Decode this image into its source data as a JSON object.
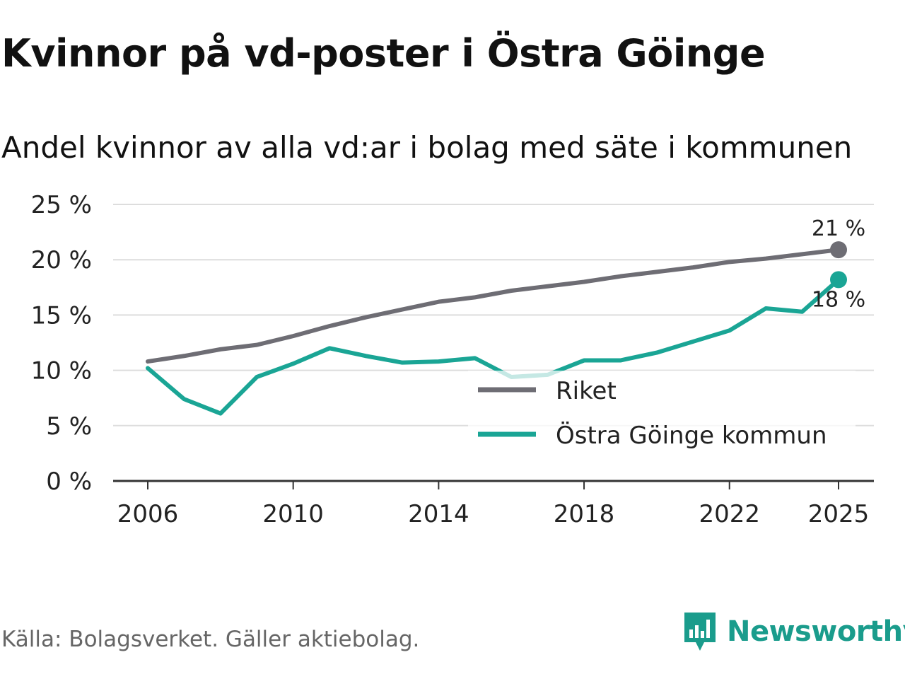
{
  "header": {
    "title": "Kvinnor på vd-poster i Östra Göinge",
    "subtitle": "Andel kvinnor av alla vd:ar i bolag med säte i kommunen"
  },
  "footer": {
    "source": "Källa: Bolagsverket. Gäller aktiebolag.",
    "brand": "Newsworthy",
    "brand_icon": "bar-chart-speech-bubble-icon"
  },
  "colors": {
    "riket": "#6e6d74",
    "kommun": "#1aa595",
    "grid": "#dddddd",
    "axis": "#333333"
  },
  "chart_data": {
    "type": "line",
    "title": "Kvinnor på vd-poster i Östra Göinge",
    "subtitle": "Andel kvinnor av alla vd:ar i bolag med säte i kommunen",
    "x": [
      2006,
      2007,
      2008,
      2009,
      2010,
      2011,
      2012,
      2013,
      2014,
      2015,
      2016,
      2017,
      2018,
      2019,
      2020,
      2021,
      2022,
      2023,
      2024,
      2025
    ],
    "x_ticks": [
      2006,
      2010,
      2014,
      2018,
      2022,
      2025
    ],
    "y_ticks": [
      0,
      5,
      10,
      15,
      20,
      25
    ],
    "y_tick_suffix": " %",
    "ylim": [
      0,
      25
    ],
    "grid": true,
    "legend_position": "lower-right",
    "series": [
      {
        "name": "Riket",
        "color": "#6e6d74",
        "values": [
          10.8,
          11.3,
          11.9,
          12.3,
          13.1,
          14.0,
          14.8,
          15.5,
          16.2,
          16.6,
          17.2,
          17.6,
          18.0,
          18.5,
          18.9,
          19.3,
          19.8,
          20.1,
          20.5,
          20.9
        ],
        "end_label": "21 %"
      },
      {
        "name": "Östra Göinge kommun",
        "color": "#1aa595",
        "values": [
          10.2,
          7.4,
          6.1,
          9.4,
          10.6,
          12.0,
          11.3,
          10.7,
          10.8,
          11.1,
          9.4,
          9.6,
          10.9,
          10.9,
          11.6,
          12.6,
          13.6,
          15.6,
          15.3,
          18.2
        ],
        "end_label": "18 %"
      }
    ]
  }
}
